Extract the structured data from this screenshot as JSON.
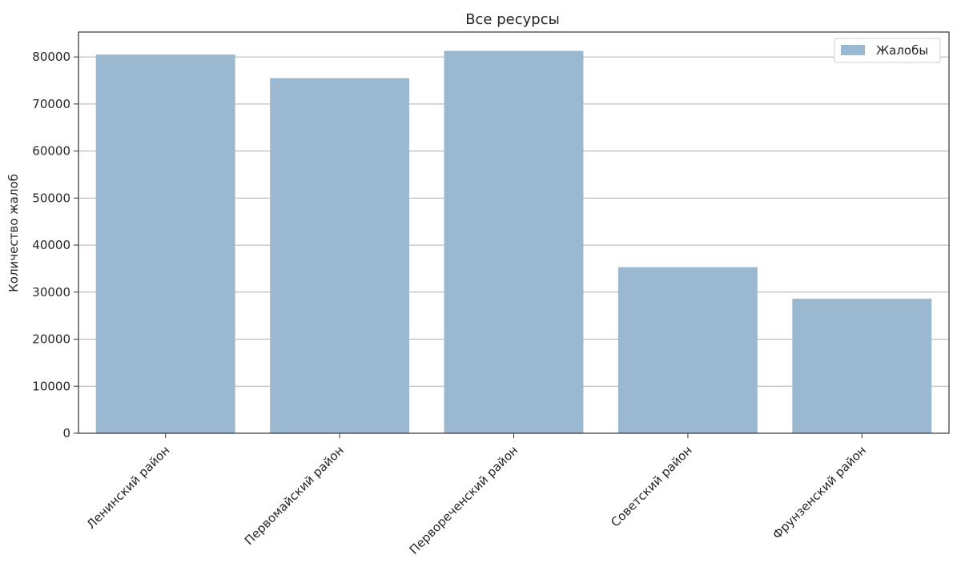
{
  "chart_data": {
    "type": "bar",
    "title": "Все ресурсы",
    "xlabel": "",
    "ylabel": "Количество жалоб",
    "categories": [
      "Ленинский район",
      "Первомайский район",
      "Первореченский район",
      "Советский район",
      "Фрунзенский район"
    ],
    "series": [
      {
        "name": "Жалобы",
        "values": [
          80500,
          75500,
          81300,
          35300,
          28600
        ]
      }
    ],
    "ylim": [
      0,
      85300
    ],
    "yticks": [
      0,
      10000,
      20000,
      30000,
      40000,
      50000,
      60000,
      70000,
      80000
    ],
    "grid": "horizontal",
    "legend": "top-right",
    "bar_color": "#9ab8d0"
  }
}
